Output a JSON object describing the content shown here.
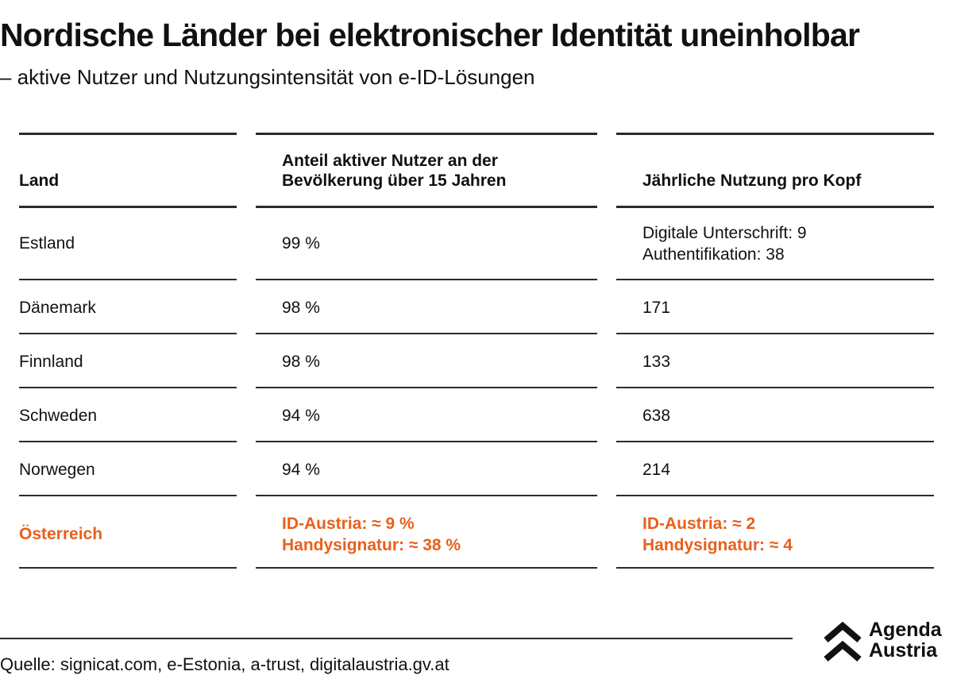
{
  "title": "Nordische Länder bei elektronischer Identität uneinholbar",
  "subtitle": "– aktive Nutzer und Nutzungsintensität von e-ID-Lösungen",
  "chart_data": {
    "type": "table",
    "columns": [
      "Land",
      "Anteil aktiver Nutzer an der Bevölkerung über 15 Jahren",
      "Jährliche Nutzung pro Kopf"
    ],
    "header": {
      "col1": "Land",
      "col2_line1": "Anteil aktiver Nutzer an der",
      "col2_line2": "Bevölkerung über 15 Jahren",
      "col3": "Jährliche Nutzung pro Kopf"
    },
    "rows": [
      {
        "land": "Estland",
        "anteil": "99 %",
        "nutzung_line1": "Digitale Unterschrift: 9",
        "nutzung_line2": "Authentifikation: 38"
      },
      {
        "land": "Dänemark",
        "anteil": "98 %",
        "nutzung": "171"
      },
      {
        "land": "Finnland",
        "anteil": "98 %",
        "nutzung": "133"
      },
      {
        "land": "Schweden",
        "anteil": "94 %",
        "nutzung": "638"
      },
      {
        "land": "Norwegen",
        "anteil": "94 %",
        "nutzung": "214"
      },
      {
        "land": "Österreich",
        "anteil_line1": "ID-Austria: ≈ 9 %",
        "anteil_line2": "Handysignatur: ≈ 38 %",
        "nutzung_line1": "ID-Austria: ≈ 2",
        "nutzung_line2": "Handysignatur: ≈ 4",
        "highlight": true
      }
    ]
  },
  "colors": {
    "highlight": "#e8601c",
    "rule": "#2b2b2b",
    "text": "#111111"
  },
  "source": "Quelle: signicat.com, e-Estonia, a-trust, digitalaustria.gv.at",
  "logo": {
    "line1": "Agenda",
    "line2": "Austria"
  }
}
